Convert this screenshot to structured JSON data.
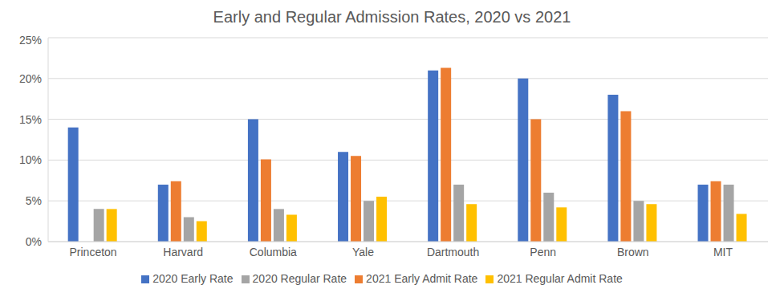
{
  "chart_data": {
    "type": "bar",
    "title": "Early and Regular Admission Rates, 2020 vs 2021",
    "categories": [
      "Princeton",
      "Harvard",
      "Columbia",
      "Yale",
      "Dartmouth",
      "Penn",
      "Brown",
      "MIT"
    ],
    "series": [
      {
        "name": "2020 Early Rate",
        "color": "#4472c4",
        "values": [
          14,
          7,
          15,
          11,
          21,
          20,
          18,
          7
        ]
      },
      {
        "name": "2021 Early Admit Rate",
        "color": "#ed7d31",
        "values": [
          null,
          7.4,
          10.1,
          10.5,
          21.3,
          15,
          16,
          7.4
        ]
      },
      {
        "name": "2020 Regular Rate",
        "color": "#a5a5a5",
        "values": [
          4,
          3,
          4,
          5,
          7,
          6,
          5,
          7
        ]
      },
      {
        "name": "2021 Regular Admit Rate",
        "color": "#ffc000",
        "values": [
          4,
          2.5,
          3.3,
          5.5,
          4.6,
          4.2,
          4.6,
          3.4
        ]
      }
    ],
    "ylim": [
      0,
      25
    ],
    "yticks": [
      {
        "value": 0,
        "label": "0%"
      },
      {
        "value": 5,
        "label": "5%"
      },
      {
        "value": 10,
        "label": "10%"
      },
      {
        "value": 15,
        "label": "15%"
      },
      {
        "value": 20,
        "label": "20%"
      },
      {
        "value": 25,
        "label": "25%"
      }
    ],
    "grid": true,
    "legend": "bottom"
  }
}
